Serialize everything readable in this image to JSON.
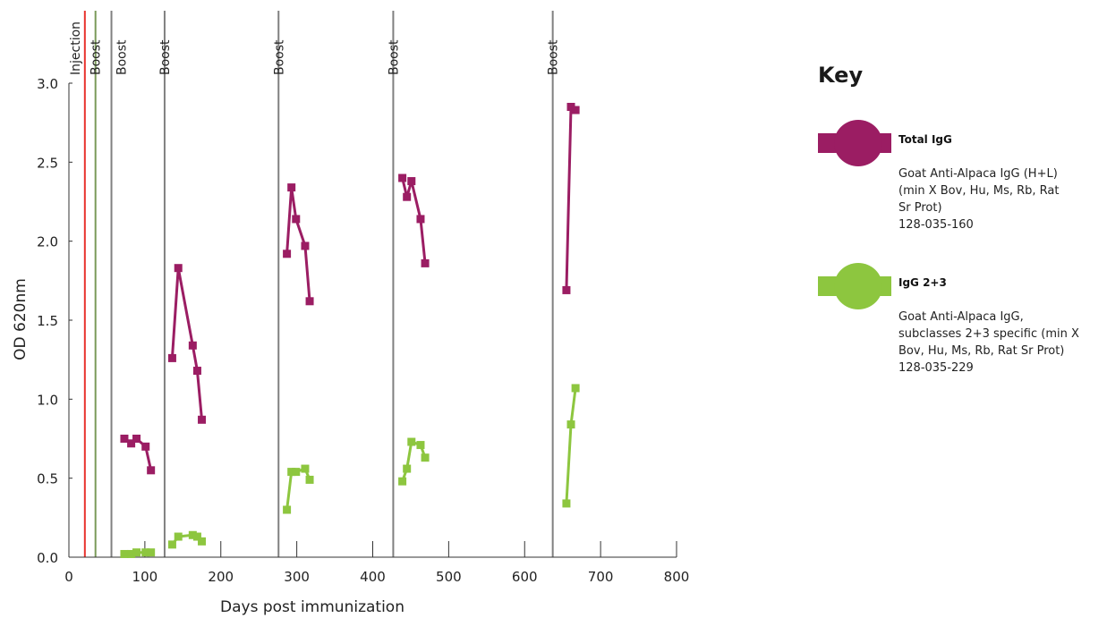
{
  "chart_data": {
    "type": "line",
    "xlabel": "Days post immunization",
    "ylabel": "OD 620nm",
    "xlim": [
      0,
      800
    ],
    "ylim": [
      0,
      3.0
    ],
    "x_ticks": [
      "0",
      "100",
      "200",
      "300",
      "400",
      "500",
      "600",
      "700",
      "800"
    ],
    "y_ticks": [
      "0.0",
      "0.5",
      "1.0",
      "1.5",
      "2.0",
      "2.5",
      "3.0"
    ],
    "events": [
      {
        "label": "Injection",
        "x": 21,
        "color": "#e8332e"
      },
      {
        "label": "Boost",
        "x": 35,
        "color": "#7a9a5a"
      },
      {
        "label": "Boost",
        "x": 56,
        "color": "#808080"
      },
      {
        "label": "Boost",
        "x": 126,
        "color": "#808080"
      },
      {
        "label": "Boost",
        "x": 276,
        "color": "#808080"
      },
      {
        "label": "Boost",
        "x": 427,
        "color": "#808080"
      },
      {
        "label": "Boost",
        "x": 637,
        "color": "#808080"
      }
    ],
    "series": [
      {
        "name": "Total IgG",
        "color": "#9b1d63",
        "segments": [
          [
            [
              73,
              0.75
            ],
            [
              82,
              0.72
            ],
            [
              89,
              0.75
            ],
            [
              101,
              0.7
            ],
            [
              108,
              0.55
            ]
          ],
          [
            [
              136,
              1.26
            ],
            [
              144,
              1.83
            ],
            [
              163,
              1.34
            ],
            [
              169,
              1.18
            ],
            [
              175,
              0.87
            ]
          ],
          [
            [
              287,
              1.92
            ],
            [
              293,
              2.34
            ],
            [
              299,
              2.14
            ],
            [
              311,
              1.97
            ],
            [
              317,
              1.62
            ]
          ],
          [
            [
              439,
              2.4
            ],
            [
              445,
              2.28
            ],
            [
              451,
              2.38
            ],
            [
              463,
              2.14
            ],
            [
              469,
              1.86
            ]
          ],
          [
            [
              655,
              1.69
            ],
            [
              661,
              2.85
            ],
            [
              667,
              2.83
            ]
          ]
        ]
      },
      {
        "name": "IgG 2+3",
        "color": "#8dc63f",
        "segments": [
          [
            [
              73,
              0.02
            ],
            [
              82,
              0.02
            ],
            [
              89,
              0.03
            ],
            [
              101,
              0.03
            ],
            [
              108,
              0.03
            ]
          ],
          [
            [
              136,
              0.08
            ],
            [
              144,
              0.13
            ],
            [
              163,
              0.14
            ],
            [
              169,
              0.13
            ],
            [
              175,
              0.1
            ]
          ],
          [
            [
              287,
              0.3
            ],
            [
              293,
              0.54
            ],
            [
              299,
              0.54
            ],
            [
              311,
              0.56
            ],
            [
              317,
              0.49
            ]
          ],
          [
            [
              439,
              0.48
            ],
            [
              445,
              0.56
            ],
            [
              451,
              0.73
            ],
            [
              463,
              0.71
            ],
            [
              469,
              0.63
            ]
          ],
          [
            [
              655,
              0.34
            ],
            [
              661,
              0.84
            ],
            [
              667,
              1.07
            ]
          ]
        ]
      }
    ]
  },
  "key": {
    "title": "Key",
    "items": [
      {
        "name": "Total IgG",
        "color": "#9b1d63",
        "description": [
          "Goat Anti-Alpaca IgG (H+L)",
          "(min X Bov, Hu, Ms, Rb, Rat",
          "Sr Prot)",
          "128-035-160"
        ]
      },
      {
        "name": "IgG 2+3",
        "color": "#8dc63f",
        "description": [
          "Goat Anti-Alpaca IgG,",
          "subclasses 2+3 specific (min X",
          "Bov, Hu, Ms, Rb, Rat Sr Prot)",
          "128-035-229"
        ]
      }
    ]
  }
}
